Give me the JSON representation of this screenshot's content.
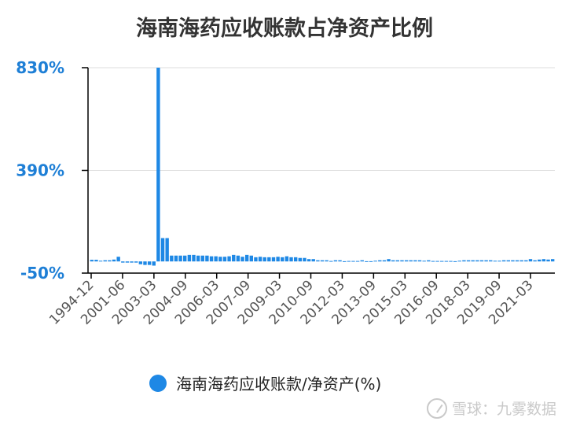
{
  "title": "海南海药应收账款占净资产比例",
  "watermark": "雪球：九雾数据",
  "colors": {
    "bar": "#1e88e5",
    "tick_label": "#1e7fd6",
    "axis": "#000000",
    "grid": "#dddddd",
    "text": "#333333"
  },
  "chart_data": {
    "type": "bar",
    "title": "海南海药应收账款占净资产比例",
    "ylim": [
      -50,
      830
    ],
    "y_ticks": [
      830,
      390,
      -50
    ],
    "y_tick_labels": [
      "830%",
      "390%",
      "-50%"
    ],
    "x_tick_labels": [
      "1994-12",
      "2001-06",
      "2003-03",
      "2004-09",
      "2006-03",
      "2007-09",
      "2009-03",
      "2010-09",
      "2012-03",
      "2013-09",
      "2015-03",
      "2016-09",
      "2018-03",
      "2019-09",
      "2021-03"
    ],
    "grid": true,
    "legend_position": "bottom",
    "series": [
      {
        "name": "海南海药应收账款/净资产(%)",
        "values": [
          7,
          7,
          3,
          5,
          5,
          8,
          20,
          -5,
          -5,
          -5,
          -5,
          -12,
          -15,
          -15,
          -18,
          830,
          100,
          100,
          25,
          25,
          25,
          25,
          28,
          28,
          25,
          25,
          25,
          22,
          22,
          20,
          20,
          22,
          28,
          25,
          20,
          28,
          25,
          18,
          20,
          18,
          18,
          18,
          20,
          18,
          22,
          18,
          18,
          15,
          15,
          10,
          10,
          5,
          5,
          5,
          2,
          5,
          5,
          1,
          2,
          2,
          2,
          5,
          1,
          1,
          3,
          5,
          5,
          10,
          5,
          5,
          5,
          5,
          5,
          5,
          5,
          3,
          5,
          2,
          2,
          2,
          2,
          2,
          1,
          3,
          5,
          5,
          5,
          5,
          5,
          5,
          5,
          3,
          3,
          5,
          5,
          5,
          5,
          5,
          5,
          10,
          5,
          8,
          10,
          8,
          10
        ]
      }
    ]
  }
}
